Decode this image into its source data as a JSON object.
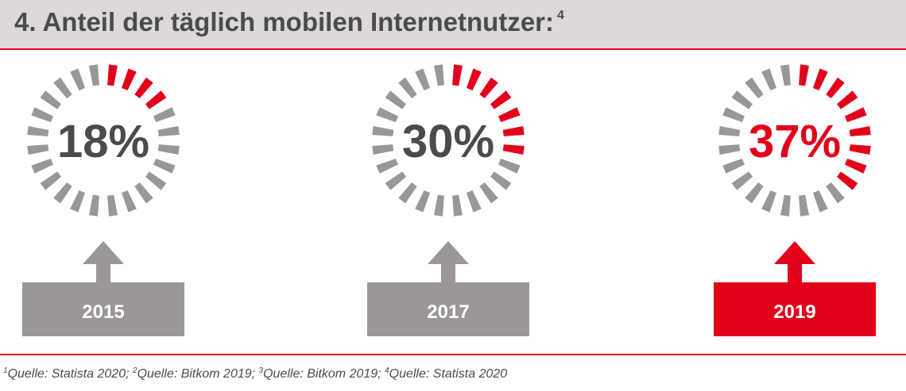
{
  "header": {
    "title": "4. Anteil der täglich mobilen Internetnutzer:",
    "title_sup": "4"
  },
  "colors": {
    "accent": "#e2001a",
    "segment_gray": "#9a9796",
    "text_dark": "#4b4b4b",
    "header_bg": "#dcd9d8"
  },
  "chart_data": {
    "type": "gauge",
    "segments_per_ring": 24,
    "items": [
      {
        "year": "2015",
        "label": "18%",
        "percent": 18,
        "red_segments": 4,
        "highlight": false
      },
      {
        "year": "2017",
        "label": "30%",
        "percent": 30,
        "red_segments": 7,
        "highlight": false
      },
      {
        "year": "2019",
        "label": "37%",
        "percent": 37,
        "red_segments": 9,
        "highlight": true
      }
    ]
  },
  "footnote": {
    "parts": [
      {
        "sup": "1",
        "text": "Quelle: Statista 2020; "
      },
      {
        "sup": "2",
        "text": "Quelle: Bitkom 2019; "
      },
      {
        "sup": "3",
        "text": "Quelle: Bitkom 2019; "
      },
      {
        "sup": "4",
        "text": "Quelle: Statista 2020"
      }
    ]
  }
}
